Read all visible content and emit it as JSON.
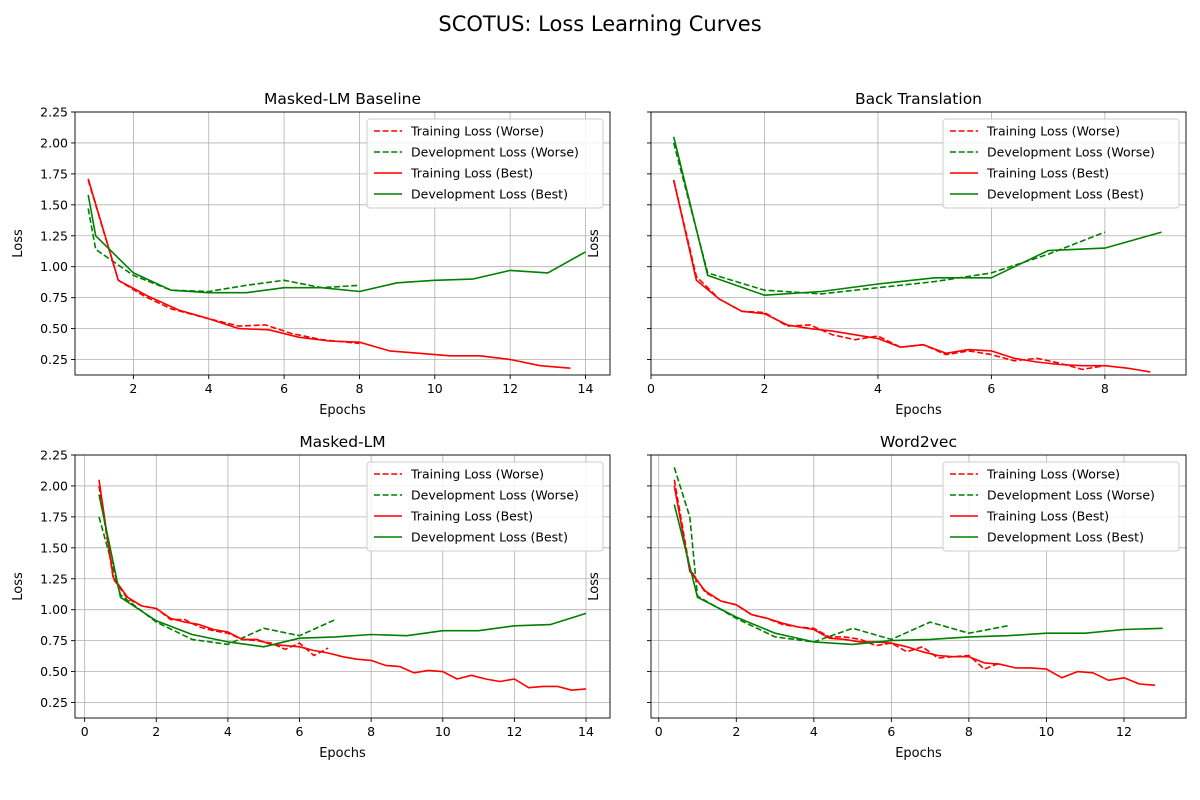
{
  "figure": {
    "title": "SCOTUS: Loss Learning Curves"
  },
  "styles": {
    "colors": {
      "training": "#ff0000",
      "development": "#008000",
      "grid": "#b0b0b0",
      "axis": "#000000"
    }
  },
  "chart_data": [
    {
      "type": "line",
      "title": "Masked-LM Baseline",
      "xlabel": "Epochs",
      "ylabel": "Loss",
      "xlim": [
        0.45,
        14.65
      ],
      "ylim": [
        0.125,
        2.25
      ],
      "xticks": [
        2,
        4,
        6,
        8,
        10,
        12,
        14
      ],
      "yticks": [
        0.25,
        0.5,
        0.75,
        1.0,
        1.25,
        1.5,
        1.75,
        2.0,
        2.25
      ],
      "ytick_labels": [
        "0.25",
        "0.50",
        "0.75",
        "1.00",
        "1.25",
        "1.50",
        "1.75",
        "2.00",
        "2.25"
      ],
      "show_yticklabels": true,
      "grid": true,
      "legend": "top-right",
      "series": [
        {
          "name": "Training Loss (Worse)",
          "color": "red",
          "dashed": true,
          "x": [
            0.8,
            1.6,
            2.3,
            3.0,
            4.0,
            4.8,
            5.5,
            6.2,
            7.0,
            8.0
          ],
          "y": [
            1.7,
            0.89,
            0.76,
            0.66,
            0.58,
            0.52,
            0.53,
            0.46,
            0.41,
            0.38
          ]
        },
        {
          "name": "Development Loss (Worse)",
          "color": "green",
          "dashed": true,
          "x": [
            0.8,
            1.0,
            2.0,
            3.0,
            4.0,
            5.0,
            6.0,
            7.0,
            8.0
          ],
          "y": [
            1.47,
            1.14,
            0.93,
            0.81,
            0.8,
            0.85,
            0.89,
            0.83,
            0.85
          ]
        },
        {
          "name": "Training Loss (Best)",
          "color": "red",
          "dashed": false,
          "x": [
            0.8,
            1.6,
            2.4,
            3.2,
            4.0,
            4.8,
            5.6,
            6.4,
            7.2,
            8.0,
            8.8,
            9.6,
            10.4,
            11.2,
            12.0,
            12.8,
            13.6
          ],
          "y": [
            1.71,
            0.89,
            0.76,
            0.65,
            0.58,
            0.5,
            0.49,
            0.43,
            0.4,
            0.39,
            0.32,
            0.3,
            0.28,
            0.28,
            0.25,
            0.2,
            0.18
          ]
        },
        {
          "name": "Development Loss (Best)",
          "color": "green",
          "dashed": false,
          "x": [
            0.8,
            1.0,
            2.0,
            3.0,
            4.0,
            5.0,
            6.0,
            7.0,
            8.0,
            9.0,
            10.0,
            11.0,
            12.0,
            13.0,
            14.0
          ],
          "y": [
            1.58,
            1.25,
            0.95,
            0.81,
            0.79,
            0.79,
            0.83,
            0.83,
            0.8,
            0.87,
            0.89,
            0.9,
            0.97,
            0.95,
            1.12
          ]
        }
      ]
    },
    {
      "type": "line",
      "title": "Back Translation",
      "xlabel": "Epochs",
      "ylabel": "Loss",
      "xlim": [
        0.0,
        9.43
      ],
      "ylim": [
        0.125,
        2.25
      ],
      "xticks": [
        0,
        2,
        4,
        6,
        8
      ],
      "yticks": [
        0.25,
        0.5,
        0.75,
        1.0,
        1.25,
        1.5,
        1.75,
        2.0,
        2.25
      ],
      "show_yticklabels": false,
      "grid": true,
      "legend": "top-right",
      "series": [
        {
          "name": "Training Loss (Worse)",
          "color": "red",
          "dashed": true,
          "x": [
            0.4,
            0.8,
            1.2,
            1.6,
            2.0,
            2.4,
            2.8,
            3.2,
            3.6,
            4.0,
            4.4,
            4.8,
            5.2,
            5.6,
            6.0,
            6.4,
            6.8,
            7.2,
            7.6,
            8.0
          ],
          "y": [
            1.7,
            0.92,
            0.74,
            0.64,
            0.63,
            0.52,
            0.53,
            0.45,
            0.41,
            0.44,
            0.35,
            0.37,
            0.29,
            0.32,
            0.29,
            0.24,
            0.26,
            0.22,
            0.17,
            0.2
          ]
        },
        {
          "name": "Development Loss (Worse)",
          "color": "green",
          "dashed": true,
          "x": [
            0.4,
            1.0,
            2.0,
            3.0,
            4.0,
            5.0,
            6.0,
            7.0,
            8.0
          ],
          "y": [
            2.0,
            0.95,
            0.81,
            0.78,
            0.83,
            0.88,
            0.95,
            1.1,
            1.28
          ]
        },
        {
          "name": "Training Loss (Best)",
          "color": "red",
          "dashed": false,
          "x": [
            0.4,
            0.8,
            1.2,
            1.6,
            2.0,
            2.4,
            2.8,
            3.2,
            3.6,
            4.0,
            4.4,
            4.8,
            5.2,
            5.6,
            6.0,
            6.4,
            6.8,
            7.2,
            7.6,
            8.0,
            8.4,
            8.8
          ],
          "y": [
            1.7,
            0.89,
            0.74,
            0.64,
            0.62,
            0.53,
            0.5,
            0.48,
            0.45,
            0.42,
            0.35,
            0.37,
            0.3,
            0.33,
            0.32,
            0.26,
            0.23,
            0.21,
            0.2,
            0.2,
            0.18,
            0.15
          ]
        },
        {
          "name": "Development Loss (Best)",
          "color": "green",
          "dashed": false,
          "x": [
            0.4,
            1.0,
            2.0,
            3.0,
            4.0,
            5.0,
            6.0,
            7.0,
            8.0,
            9.0
          ],
          "y": [
            2.05,
            0.93,
            0.77,
            0.8,
            0.86,
            0.91,
            0.91,
            1.13,
            1.15,
            1.28
          ]
        }
      ]
    },
    {
      "type": "line",
      "title": "Masked-LM",
      "xlabel": "Epochs",
      "ylabel": "Loss",
      "xlim": [
        -0.27,
        14.67
      ],
      "ylim": [
        0.125,
        2.25
      ],
      "xticks": [
        0,
        2,
        4,
        6,
        8,
        10,
        12,
        14
      ],
      "yticks": [
        0.25,
        0.5,
        0.75,
        1.0,
        1.25,
        1.5,
        1.75,
        2.0,
        2.25
      ],
      "ytick_labels": [
        "0.25",
        "0.50",
        "0.75",
        "1.00",
        "1.25",
        "1.50",
        "1.75",
        "2.00",
        "2.25"
      ],
      "show_yticklabels": true,
      "grid": true,
      "legend": "top-right",
      "series": [
        {
          "name": "Training Loss (Worse)",
          "color": "red",
          "dashed": true,
          "x": [
            0.4,
            0.8,
            1.2,
            1.6,
            2.0,
            2.4,
            2.8,
            3.2,
            3.6,
            4.0,
            4.4,
            4.8,
            5.2,
            5.6,
            6.0,
            6.4,
            6.8
          ],
          "y": [
            2.0,
            1.25,
            1.09,
            1.03,
            1.01,
            0.92,
            0.92,
            0.86,
            0.83,
            0.81,
            0.76,
            0.75,
            0.73,
            0.68,
            0.73,
            0.63,
            0.69
          ]
        },
        {
          "name": "Development Loss (Worse)",
          "color": "green",
          "dashed": true,
          "x": [
            0.4,
            1.0,
            2.0,
            3.0,
            4.0,
            5.0,
            6.0,
            7.0
          ],
          "y": [
            1.75,
            1.12,
            0.9,
            0.76,
            0.72,
            0.85,
            0.79,
            0.92
          ]
        },
        {
          "name": "Training Loss (Best)",
          "color": "red",
          "dashed": false,
          "x": [
            0.4,
            0.8,
            1.2,
            1.6,
            2.0,
            2.4,
            2.8,
            3.2,
            3.6,
            4.0,
            4.4,
            4.8,
            5.2,
            5.6,
            6.0,
            6.4,
            6.8,
            7.2,
            7.6,
            8.0,
            8.4,
            8.8,
            9.2,
            9.6,
            10.0,
            10.4,
            10.8,
            11.2,
            11.6,
            12.0,
            12.4,
            12.8,
            13.2,
            13.6,
            14.0
          ],
          "y": [
            2.05,
            1.26,
            1.1,
            1.03,
            1.01,
            0.93,
            0.9,
            0.88,
            0.84,
            0.82,
            0.76,
            0.76,
            0.72,
            0.71,
            0.7,
            0.67,
            0.65,
            0.62,
            0.6,
            0.59,
            0.55,
            0.54,
            0.49,
            0.51,
            0.5,
            0.44,
            0.47,
            0.44,
            0.42,
            0.44,
            0.37,
            0.38,
            0.38,
            0.35,
            0.36
          ]
        },
        {
          "name": "Development Loss (Best)",
          "color": "green",
          "dashed": false,
          "x": [
            0.4,
            1.0,
            2.0,
            3.0,
            4.0,
            5.0,
            6.0,
            7.0,
            8.0,
            9.0,
            10.0,
            11.0,
            12.0,
            13.0,
            14.0
          ],
          "y": [
            1.93,
            1.1,
            0.91,
            0.8,
            0.74,
            0.7,
            0.77,
            0.78,
            0.8,
            0.79,
            0.83,
            0.83,
            0.87,
            0.88,
            0.97
          ]
        }
      ]
    },
    {
      "type": "line",
      "title": "Word2vec",
      "xlabel": "Epochs",
      "ylabel": "Loss",
      "xlim": [
        -0.2,
        13.6
      ],
      "ylim": [
        0.125,
        2.25
      ],
      "xticks": [
        0,
        2,
        4,
        6,
        8,
        10,
        12
      ],
      "yticks": [
        0.25,
        0.5,
        0.75,
        1.0,
        1.25,
        1.5,
        1.75,
        2.0,
        2.25
      ],
      "show_yticklabels": false,
      "grid": true,
      "legend": "top-right",
      "series": [
        {
          "name": "Training Loss (Worse)",
          "color": "red",
          "dashed": true,
          "x": [
            0.4,
            0.8,
            1.2,
            1.6,
            2.0,
            2.4,
            2.8,
            3.2,
            3.6,
            4.0,
            4.4,
            4.8,
            5.2,
            5.6,
            6.0,
            6.4,
            6.8,
            7.2,
            7.6,
            8.0,
            8.4,
            8.8
          ],
          "y": [
            2.05,
            1.33,
            1.14,
            1.07,
            1.04,
            0.96,
            0.93,
            0.88,
            0.86,
            0.85,
            0.78,
            0.78,
            0.76,
            0.71,
            0.73,
            0.66,
            0.7,
            0.61,
            0.62,
            0.63,
            0.52,
            0.57
          ]
        },
        {
          "name": "Development Loss (Worse)",
          "color": "green",
          "dashed": true,
          "x": [
            0.4,
            0.8,
            1.0,
            2.0,
            3.0,
            4.0,
            5.0,
            6.0,
            7.0,
            8.0,
            9.0
          ],
          "y": [
            2.15,
            1.75,
            1.11,
            0.93,
            0.78,
            0.74,
            0.85,
            0.76,
            0.9,
            0.81,
            0.87
          ]
        },
        {
          "name": "Training Loss (Best)",
          "color": "red",
          "dashed": false,
          "x": [
            0.4,
            0.8,
            1.2,
            1.6,
            2.0,
            2.4,
            2.8,
            3.2,
            3.6,
            4.0,
            4.4,
            4.8,
            5.2,
            5.6,
            6.0,
            6.4,
            6.8,
            7.2,
            7.6,
            8.0,
            8.4,
            8.8,
            9.2,
            9.6,
            10.0,
            10.4,
            10.8,
            11.2,
            11.6,
            12.0,
            12.4,
            12.8
          ],
          "y": [
            2.0,
            1.31,
            1.15,
            1.07,
            1.04,
            0.96,
            0.93,
            0.89,
            0.86,
            0.84,
            0.77,
            0.76,
            0.74,
            0.74,
            0.73,
            0.7,
            0.66,
            0.63,
            0.62,
            0.62,
            0.57,
            0.56,
            0.53,
            0.53,
            0.52,
            0.45,
            0.5,
            0.49,
            0.43,
            0.45,
            0.4,
            0.39
          ]
        },
        {
          "name": "Development Loss (Best)",
          "color": "green",
          "dashed": false,
          "x": [
            0.4,
            1.0,
            2.0,
            3.0,
            4.0,
            5.0,
            6.0,
            7.0,
            8.0,
            9.0,
            10.0,
            11.0,
            12.0,
            13.0
          ],
          "y": [
            1.85,
            1.1,
            0.94,
            0.81,
            0.74,
            0.72,
            0.75,
            0.76,
            0.78,
            0.79,
            0.81,
            0.81,
            0.84,
            0.85
          ]
        }
      ]
    }
  ]
}
